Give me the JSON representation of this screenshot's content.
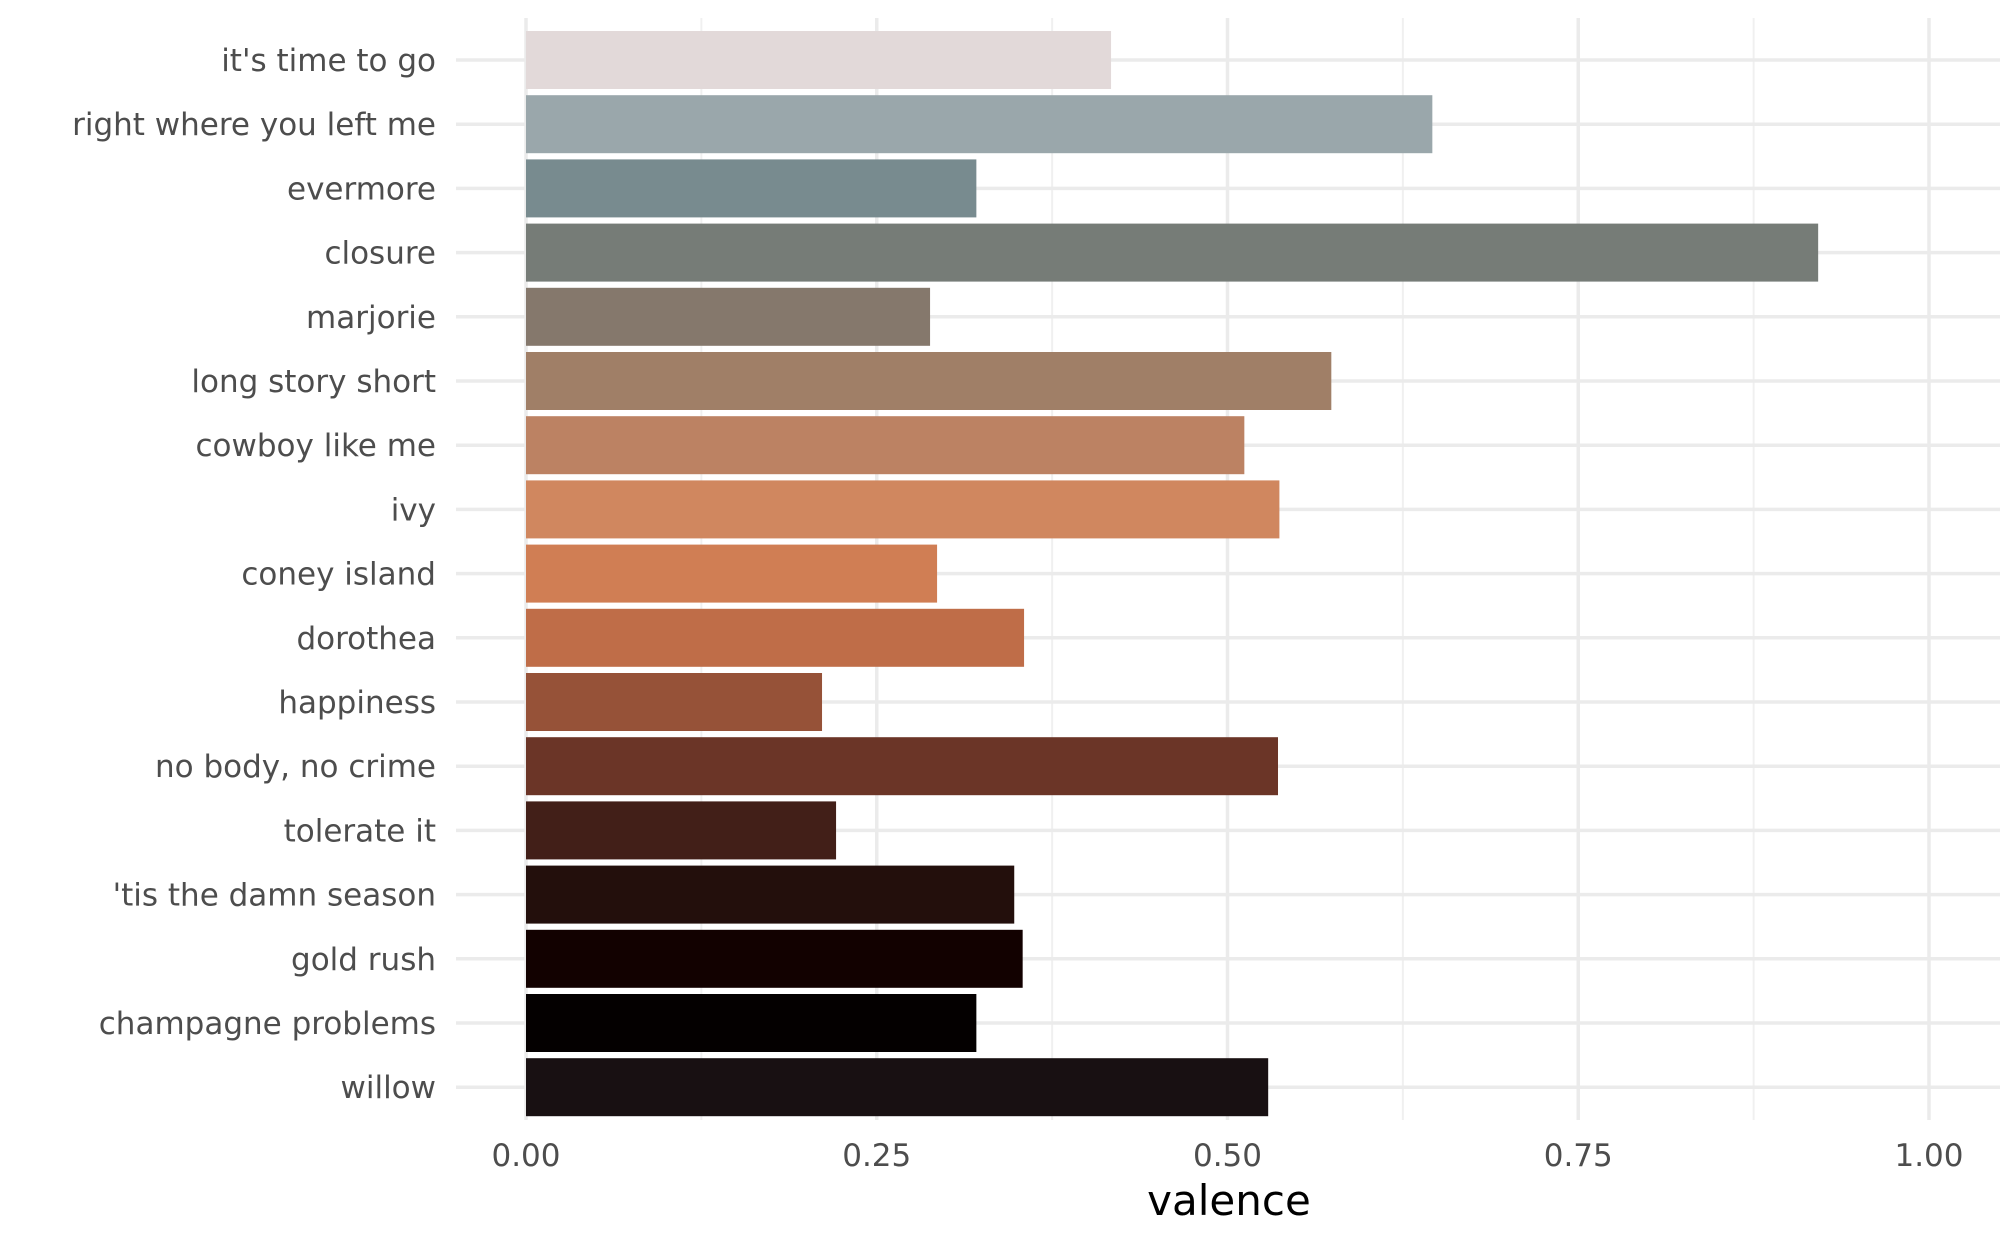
{
  "chart_data": {
    "type": "bar",
    "orientation": "horizontal",
    "title": "",
    "xlabel": "valence",
    "ylabel": "",
    "xlim": [
      -0.05,
      1.05
    ],
    "x_ticks": [
      "0.00",
      "0.25",
      "0.50",
      "0.75",
      "1.00"
    ],
    "x_tick_values": [
      0,
      0.25,
      0.5,
      0.75,
      1.0
    ],
    "grid": true,
    "legend": "none",
    "categories": [
      "it's time to go",
      "right where you left me",
      "evermore",
      "closure",
      "marjorie",
      "long story short",
      "cowboy like me",
      "ivy",
      "coney island",
      "dorothea",
      "happiness",
      "no body, no crime",
      "tolerate it",
      "'tis the damn season",
      "gold rush",
      "champagne problems",
      "willow"
    ],
    "values": [
      0.417,
      0.646,
      0.321,
      0.921,
      0.288,
      0.574,
      0.512,
      0.537,
      0.293,
      0.355,
      0.211,
      0.536,
      0.221,
      0.348,
      0.354,
      0.321,
      0.529
    ],
    "colors": [
      "#e2d9d9",
      "#9aa7ab",
      "#788b8f",
      "#767c77",
      "#85786c",
      "#a07f67",
      "#bc8263",
      "#d0875f",
      "#d07e54",
      "#bf6d48",
      "#965238",
      "#6b3527",
      "#421f18",
      "#230f0c",
      "#120100",
      "#040000",
      "#181012"
    ]
  }
}
